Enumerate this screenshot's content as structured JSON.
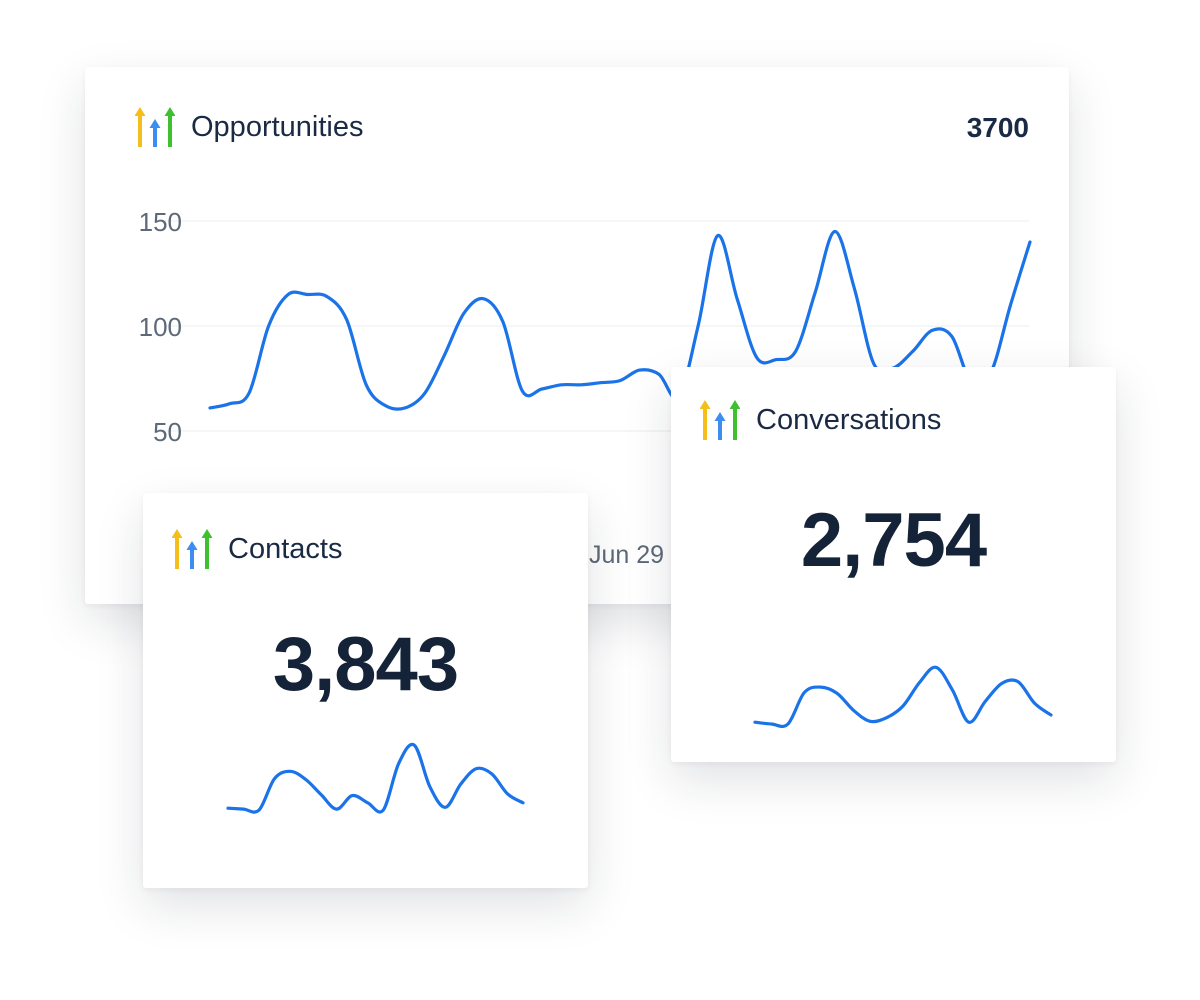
{
  "colors": {
    "line": "#1a73e8",
    "text_dark": "#1b2a44",
    "axis_text": "#5d6978",
    "grid": "#e9ecef",
    "logo_yellow": "#f6be1a",
    "logo_blue": "#3b8ef0",
    "logo_green": "#3fc12f"
  },
  "icons": {
    "app_logo": "highlevel-arrows-icon"
  },
  "opportunities": {
    "title": "Opportunities",
    "total": "3700"
  },
  "contacts": {
    "title": "Contacts",
    "value": "3,843"
  },
  "conversations": {
    "title": "Conversations",
    "value": "2,754"
  },
  "chart_data": [
    {
      "type": "line",
      "title": "Opportunities",
      "ylim": [
        0,
        150
      ],
      "y_ticks": [
        {
          "value": 150,
          "label": "150"
        },
        {
          "value": 100,
          "label": "100"
        },
        {
          "value": 50,
          "label": "50"
        }
      ],
      "x_tick_labels": [
        "Jun 29"
      ],
      "grid": true,
      "values": [
        61,
        63,
        68,
        100,
        115,
        115,
        114,
        103,
        72,
        62,
        61,
        68,
        86,
        106,
        113,
        102,
        69,
        70,
        72,
        72,
        73,
        74,
        79,
        77,
        66,
        100,
        143,
        113,
        85,
        84,
        88,
        116,
        145,
        118,
        82,
        80,
        88,
        98,
        95,
        73,
        78,
        110,
        140
      ]
    },
    {
      "type": "line",
      "title": "Contacts",
      "values": [
        12,
        11,
        10,
        45,
        53,
        44,
        27,
        11,
        26,
        18,
        10,
        62,
        82,
        36,
        13,
        39,
        56,
        50,
        28,
        18
      ]
    },
    {
      "type": "line",
      "title": "Conversations",
      "values": [
        12,
        10,
        10,
        45,
        51,
        44,
        25,
        13,
        17,
        30,
        56,
        73,
        48,
        12,
        35,
        55,
        57,
        33,
        20
      ]
    }
  ]
}
